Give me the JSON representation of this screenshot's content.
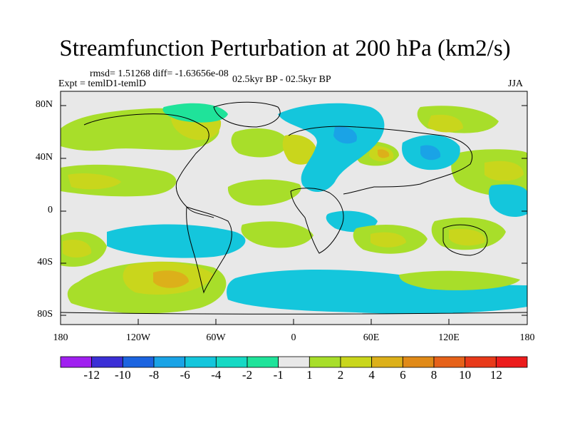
{
  "title": "Streamfunction Perturbation at 200 hPa (km2/s)",
  "stats_line": "rmsd= 1.51268 diff= -1.63656e-08",
  "experiment_line": "Expt = temlD1-temlD",
  "period_line": "02.5kyr BP - 02.5kyr BP",
  "season": "JJA",
  "map": {
    "y_tick_labels": [
      "80N",
      "40N",
      "0",
      "40S",
      "80S"
    ],
    "x_tick_labels": [
      "180",
      "120W",
      "60W",
      "0",
      "60E",
      "120E",
      "180"
    ]
  },
  "colorbar": {
    "labels": [
      "-12",
      "-10",
      "-8",
      "-6",
      "-4",
      "-2",
      "-1",
      "1",
      "2",
      "4",
      "6",
      "8",
      "10",
      "12"
    ],
    "colors": [
      "#a020f0",
      "#3b2fd6",
      "#1c64e0",
      "#1aa3e6",
      "#14c6dc",
      "#16d9c4",
      "#1fe39a",
      "#e8e8e8",
      "#a8de2a",
      "#c9d61c",
      "#dcb01a",
      "#e08a18",
      "#e6621a",
      "#e83a1a",
      "#ec1c1c"
    ]
  },
  "colors": {
    "background": "#e8e8e8",
    "contour_blue": "#14c6dc",
    "contour_blue_deep": "#1aa3e6",
    "contour_green": "#a8de2a",
    "contour_yellow": "#c9d61c",
    "contour_orange": "#dcb01a"
  }
}
